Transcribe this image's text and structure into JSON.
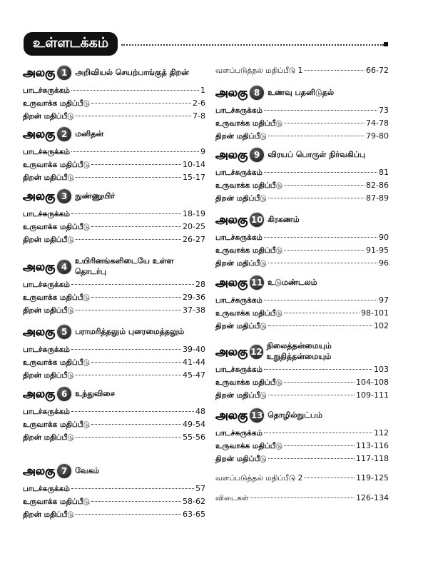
{
  "title": "உள்ளடக்கம்",
  "unit_word": "அலகு",
  "row_labels": {
    "summary": "பாடச்சுருக்கம்",
    "formative": "உருவாக்க மதிப்பீடு",
    "skill": "திறன் மதிப்பீடு"
  },
  "units": [
    {
      "num": "1",
      "title": "அறிவியல் செயற்பாங்குத் திறன்",
      "pages": [
        "1",
        "2-6",
        "7-8"
      ]
    },
    {
      "num": "2",
      "title": "மனிதன்",
      "pages": [
        "9",
        "10-14",
        "15-17"
      ]
    },
    {
      "num": "3",
      "title": "நுண்ணுயிர்",
      "pages": [
        "18-19",
        "20-25",
        "26-27"
      ]
    },
    {
      "num": "4",
      "title": "உயிரினங்களிடையே உள்ள தொடர்பு",
      "pages": [
        "28",
        "29-36",
        "37-38"
      ]
    },
    {
      "num": "5",
      "title": "பராமரித்தலும் புனரமைத்தலும்",
      "pages": [
        "39-40",
        "41-44",
        "45-47"
      ]
    },
    {
      "num": "6",
      "title": "உந்துவிசை",
      "pages": [
        "48",
        "49-54",
        "55-56"
      ]
    },
    {
      "num": "7",
      "title": "வேகம்",
      "pages": [
        "57",
        "58-62",
        "63-65"
      ]
    },
    {
      "num": "8",
      "title": "உணவு பதனிடுதல்",
      "pages": [
        "73",
        "74-78",
        "79-80"
      ]
    },
    {
      "num": "9",
      "title": "விரயப் பொருள் நிர்வகிப்பு",
      "pages": [
        "81",
        "82-86",
        "87-89"
      ]
    },
    {
      "num": "10",
      "title": "கிரகணம்",
      "pages": [
        "90",
        "91-95",
        "96"
      ]
    },
    {
      "num": "11",
      "title": "உடுமண்டலம்",
      "pages": [
        "97",
        "98-101",
        "102"
      ]
    },
    {
      "num": "12",
      "title": "நிலைத்தன்மையும் உறுதித்தன்மையும்",
      "pages": [
        "103",
        "104-108",
        "109-111"
      ]
    },
    {
      "num": "13",
      "title": "தொழில்நுட்பம்",
      "pages": [
        "112",
        "113-116",
        "117-118"
      ]
    }
  ],
  "extras": [
    {
      "label": "வளப்படுத்தல் மதிப்பீடு 1",
      "pages": "66-72"
    },
    {
      "label": "வளப்படுத்தல் மதிப்பீடு 2",
      "pages": "119-125"
    },
    {
      "label": "விடைகள்",
      "pages": "126-134"
    }
  ]
}
